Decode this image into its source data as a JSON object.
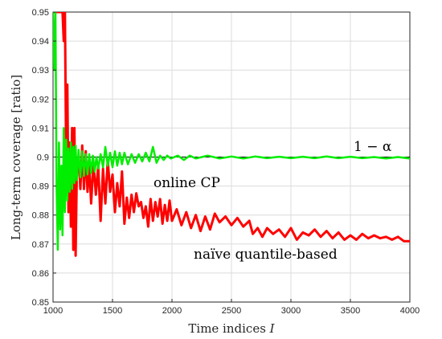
{
  "chart_data": {
    "type": "line",
    "xlabel": "Time indices ",
    "xlabel_var": "I",
    "ylabel": "Long-term coverage [ratio]",
    "xlim": [
      1000,
      4000
    ],
    "ylim": [
      0.85,
      0.95
    ],
    "x_ticks": [
      1000,
      1500,
      2000,
      2500,
      3000,
      3500,
      4000
    ],
    "y_ticks": [
      0.85,
      0.86,
      0.87,
      0.88,
      0.89,
      0.9,
      0.91,
      0.92,
      0.93,
      0.94,
      0.95
    ],
    "grid": true,
    "reference_line": {
      "y": 0.9,
      "color": "#000000"
    },
    "series": [
      {
        "color": "#00ee00",
        "x": [
          1000,
          1010,
          1020,
          1030,
          1040,
          1050,
          1060,
          1070,
          1080,
          1090,
          1100,
          1110,
          1120,
          1130,
          1140,
          1150,
          1160,
          1170,
          1180,
          1190,
          1200,
          1215,
          1230,
          1245,
          1260,
          1275,
          1290,
          1305,
          1320,
          1335,
          1350,
          1365,
          1380,
          1400,
          1420,
          1440,
          1460,
          1480,
          1500,
          1520,
          1540,
          1560,
          1580,
          1600,
          1630,
          1660,
          1690,
          1720,
          1750,
          1780,
          1810,
          1840,
          1870,
          1900,
          1930,
          1960,
          1990,
          2050,
          2100,
          2150,
          2200,
          2300,
          2400,
          2500,
          2600,
          2700,
          2800,
          2900,
          3000,
          3100,
          3200,
          3300,
          3400,
          3500,
          3600,
          3700,
          3800,
          3900,
          4000
        ],
        "y": [
          0.95,
          0.93,
          0.95,
          0.89,
          0.868,
          0.905,
          0.875,
          0.897,
          0.873,
          0.91,
          0.881,
          0.906,
          0.885,
          0.903,
          0.888,
          0.905,
          0.889,
          0.9035,
          0.891,
          0.904,
          0.892,
          0.9025,
          0.893,
          0.902,
          0.8935,
          0.901,
          0.894,
          0.901,
          0.8945,
          0.9005,
          0.895,
          0.9,
          0.896,
          0.901,
          0.8965,
          0.9035,
          0.897,
          0.9015,
          0.8965,
          0.902,
          0.897,
          0.9015,
          0.8975,
          0.9015,
          0.8975,
          0.901,
          0.898,
          0.901,
          0.8985,
          0.9015,
          0.8985,
          0.9035,
          0.898,
          0.9005,
          0.899,
          0.9005,
          0.8995,
          0.9005,
          0.899,
          0.9005,
          0.8995,
          0.9005,
          0.8995,
          0.9002,
          0.8995,
          0.9002,
          0.8996,
          0.9001,
          0.8996,
          0.9001,
          0.8996,
          0.9002,
          0.8996,
          0.9001,
          0.8996,
          0.9,
          0.8995,
          0.9,
          0.8995
        ]
      },
      {
        "color": "#ff0000",
        "x": [
          1000,
          1060,
          1080,
          1090,
          1100,
          1110,
          1120,
          1130,
          1140,
          1150,
          1160,
          1170,
          1180,
          1190,
          1200,
          1215,
          1230,
          1245,
          1260,
          1275,
          1290,
          1305,
          1320,
          1340,
          1360,
          1380,
          1400,
          1420,
          1440,
          1460,
          1480,
          1500,
          1520,
          1540,
          1560,
          1580,
          1600,
          1620,
          1640,
          1660,
          1680,
          1700,
          1720,
          1740,
          1760,
          1780,
          1800,
          1820,
          1840,
          1860,
          1880,
          1900,
          1920,
          1940,
          1960,
          1980,
          2000,
          2040,
          2080,
          2120,
          2160,
          2200,
          2240,
          2280,
          2320,
          2360,
          2400,
          2450,
          2500,
          2550,
          2600,
          2650,
          2680,
          2720,
          2760,
          2800,
          2850,
          2900,
          2950,
          3000,
          3050,
          3100,
          3150,
          3200,
          3250,
          3300,
          3350,
          3400,
          3450,
          3500,
          3550,
          3600,
          3650,
          3700,
          3750,
          3800,
          3850,
          3900,
          3950,
          4000
        ],
        "y": [
          0.95,
          0.95,
          0.95,
          0.94,
          0.95,
          0.9,
          0.925,
          0.881,
          0.905,
          0.876,
          0.91,
          0.868,
          0.91,
          0.866,
          0.895,
          0.9,
          0.889,
          0.904,
          0.889,
          0.902,
          0.888,
          0.897,
          0.884,
          0.898,
          0.887,
          0.897,
          0.878,
          0.896,
          0.884,
          0.899,
          0.888,
          0.894,
          0.881,
          0.891,
          0.883,
          0.895,
          0.877,
          0.886,
          0.879,
          0.887,
          0.881,
          0.8875,
          0.883,
          0.8845,
          0.879,
          0.883,
          0.876,
          0.8855,
          0.878,
          0.8845,
          0.8795,
          0.8855,
          0.877,
          0.8835,
          0.878,
          0.885,
          0.878,
          0.882,
          0.8765,
          0.881,
          0.8755,
          0.88,
          0.8745,
          0.8795,
          0.875,
          0.8805,
          0.8775,
          0.8795,
          0.8765,
          0.879,
          0.876,
          0.878,
          0.8735,
          0.8755,
          0.8725,
          0.8755,
          0.8735,
          0.875,
          0.8725,
          0.8755,
          0.8715,
          0.874,
          0.873,
          0.875,
          0.8725,
          0.8745,
          0.872,
          0.874,
          0.8715,
          0.873,
          0.8715,
          0.8735,
          0.872,
          0.873,
          0.872,
          0.8725,
          0.8715,
          0.8725,
          0.871,
          0.871
        ]
      }
    ],
    "annotations": {
      "alpha": "1 − α",
      "online": "online CP",
      "naive": "naïve quantile-based"
    }
  }
}
